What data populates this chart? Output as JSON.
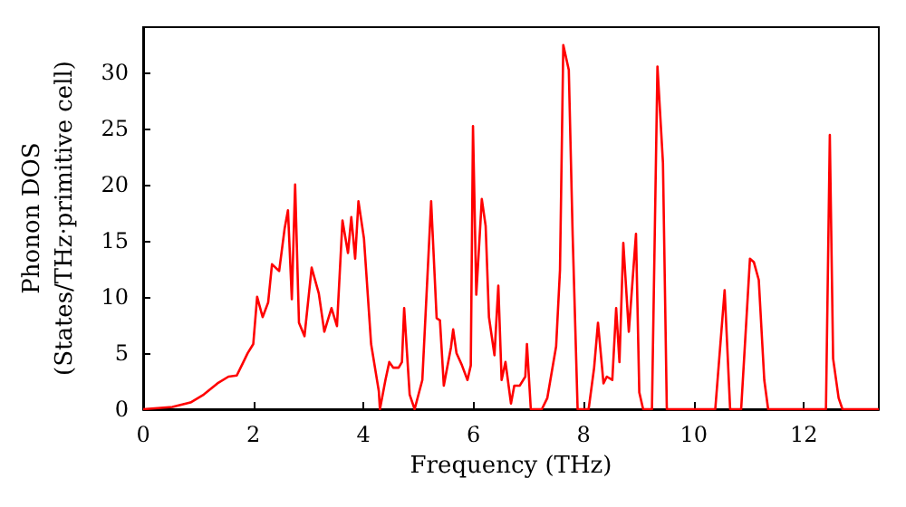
{
  "chart_data": {
    "type": "line",
    "xlabel": "Frequency (THz)",
    "ylabel": "Phonon DOS\n(States/THz·primitive cell)",
    "xlim": [
      0,
      13.36
    ],
    "ylim": [
      0,
      34
    ],
    "xticks": [
      0,
      2,
      4,
      6,
      8,
      10,
      12
    ],
    "yticks": [
      0,
      5,
      10,
      15,
      20,
      25,
      30
    ],
    "marker": "none",
    "line_style": "solid",
    "series": [
      {
        "color": "#ff0000",
        "x": [
          0,
          0.53,
          0.86,
          1.1,
          1.35,
          1.55,
          1.7,
          1.8,
          1.9,
          2.0,
          2.07,
          2.17,
          2.27,
          2.34,
          2.47,
          2.57,
          2.63,
          2.7,
          2.76,
          2.83,
          2.93,
          3.06,
          3.19,
          3.29,
          3.42,
          3.52,
          3.62,
          3.72,
          3.78,
          3.85,
          3.91,
          4.01,
          4.14,
          4.28,
          4.3,
          4.4,
          4.47,
          4.54,
          4.64,
          4.7,
          4.74,
          4.84,
          4.93,
          5.07,
          5.23,
          5.33,
          5.39,
          5.46,
          5.59,
          5.63,
          5.69,
          5.79,
          5.89,
          5.95,
          5.99,
          6.05,
          6.15,
          6.22,
          6.28,
          6.38,
          6.45,
          6.51,
          6.58,
          6.68,
          6.74,
          6.84,
          6.94,
          6.97,
          7.04,
          7.24,
          7.34,
          7.5,
          7.57,
          7.63,
          7.73,
          7.8,
          7.89,
          8.09,
          8.19,
          8.26,
          8.36,
          8.42,
          8.52,
          8.59,
          8.65,
          8.72,
          8.82,
          8.95,
          9.01,
          9.08,
          9.24,
          9.34,
          9.44,
          9.51,
          10.39,
          10.56,
          10.66,
          10.86,
          11.02,
          11.09,
          11.18,
          11.28,
          11.35,
          12.4,
          12.47,
          12.53,
          12.63,
          12.7,
          13.36
        ],
        "values": [
          0,
          0.2,
          0.6,
          1.3,
          2.3,
          2.9,
          3.0,
          4,
          5,
          5.8,
          10,
          8.2,
          9.5,
          12.9,
          12.3,
          16.1,
          17.7,
          9.8,
          20,
          7.7,
          6.5,
          12.6,
          10.3,
          6.9,
          9,
          7.4,
          16.8,
          13.9,
          17.1,
          13.4,
          18.5,
          15.2,
          5.8,
          1.6,
          0,
          2.6,
          4.2,
          3.7,
          3.7,
          4.2,
          9,
          1.3,
          0,
          2.6,
          18.5,
          8.1,
          7.9,
          2.1,
          5.5,
          7.1,
          5,
          3.9,
          2.6,
          3.9,
          25.2,
          10.2,
          18.7,
          16.3,
          8.2,
          4.8,
          11,
          2.6,
          4.2,
          0.5,
          2.1,
          2.1,
          2.9,
          5.8,
          0,
          0,
          1,
          5.6,
          12.4,
          32.4,
          30.2,
          15.5,
          0,
          0,
          3.7,
          7.7,
          2.3,
          2.9,
          2.6,
          9,
          4.2,
          14.8,
          6.9,
          15.6,
          1.5,
          0,
          0,
          30.5,
          21.9,
          0,
          0,
          10.6,
          0,
          0,
          13.4,
          13.1,
          11.5,
          2.6,
          0,
          0,
          24.4,
          4.5,
          1,
          0,
          0
        ]
      }
    ]
  }
}
